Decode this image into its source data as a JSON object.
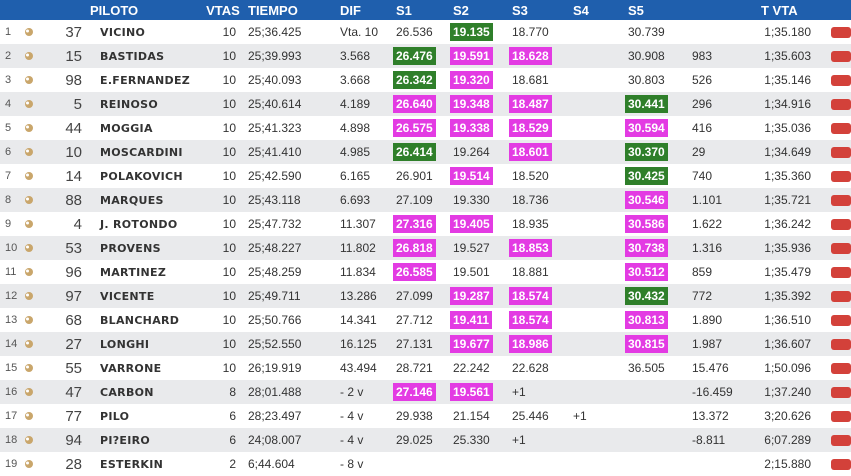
{
  "headers": {
    "piloto": "PILOTO",
    "vtas": "VTAS",
    "tiempo": "TIEMPO",
    "dif": "DIF",
    "s1": "S1",
    "s2": "S2",
    "s3": "S3",
    "s4": "S4",
    "s5": "S5",
    "tvta": "T VTA"
  },
  "colors": {
    "header_bg": "#1f5fad",
    "green": "#2f7f2a",
    "magenta": "#e33be3",
    "flag": "#d3413a",
    "row_alt": "#e9eaec"
  },
  "rows": [
    {
      "pos": "1",
      "num": "37",
      "name": "Vicino",
      "vtas": "10",
      "tiempo": "25;36.425",
      "dif": "Vta. 10",
      "s1": "26.536",
      "s1h": "",
      "s2": "19.135",
      "s2h": "g",
      "s3": "18.770",
      "s3h": "",
      "s4": "",
      "s5": "30.739",
      "s5h": "",
      "gap": "",
      "tvta": "1;35.180"
    },
    {
      "pos": "2",
      "num": "15",
      "name": "Bastidas",
      "vtas": "10",
      "tiempo": "25;39.993",
      "dif": "3.568",
      "s1": "26.476",
      "s1h": "g",
      "s2": "19.591",
      "s2h": "m",
      "s3": "18.628",
      "s3h": "m",
      "s4": "",
      "s5": "30.908",
      "s5h": "",
      "gap": "983",
      "tvta": "1;35.603"
    },
    {
      "pos": "3",
      "num": "98",
      "name": "E.Fernandez",
      "vtas": "10",
      "tiempo": "25;40.093",
      "dif": "3.668",
      "s1": "26.342",
      "s1h": "g",
      "s2": "19.320",
      "s2h": "m",
      "s3": "18.681",
      "s3h": "",
      "s4": "",
      "s5": "30.803",
      "s5h": "",
      "gap": "526",
      "tvta": "1;35.146"
    },
    {
      "pos": "4",
      "num": "5",
      "name": "Reinoso",
      "vtas": "10",
      "tiempo": "25;40.614",
      "dif": "4.189",
      "s1": "26.640",
      "s1h": "m",
      "s2": "19.348",
      "s2h": "m",
      "s3": "18.487",
      "s3h": "m",
      "s4": "",
      "s5": "30.441",
      "s5h": "g",
      "gap": "296",
      "tvta": "1;34.916"
    },
    {
      "pos": "5",
      "num": "44",
      "name": "Moggia",
      "vtas": "10",
      "tiempo": "25;41.323",
      "dif": "4.898",
      "s1": "26.575",
      "s1h": "m",
      "s2": "19.338",
      "s2h": "m",
      "s3": "18.529",
      "s3h": "m",
      "s4": "",
      "s5": "30.594",
      "s5h": "m",
      "gap": "416",
      "tvta": "1;35.036"
    },
    {
      "pos": "6",
      "num": "10",
      "name": "Moscardini",
      "vtas": "10",
      "tiempo": "25;41.410",
      "dif": "4.985",
      "s1": "26.414",
      "s1h": "g",
      "s2": "19.264",
      "s2h": "",
      "s3": "18.601",
      "s3h": "m",
      "s4": "",
      "s5": "30.370",
      "s5h": "g",
      "gap": "29",
      "tvta": "1;34.649"
    },
    {
      "pos": "7",
      "num": "14",
      "name": "Polakovich",
      "vtas": "10",
      "tiempo": "25;42.590",
      "dif": "6.165",
      "s1": "26.901",
      "s1h": "",
      "s2": "19.514",
      "s2h": "m",
      "s3": "18.520",
      "s3h": "",
      "s4": "",
      "s5": "30.425",
      "s5h": "g",
      "gap": "740",
      "tvta": "1;35.360"
    },
    {
      "pos": "8",
      "num": "88",
      "name": "Marques",
      "vtas": "10",
      "tiempo": "25;43.118",
      "dif": "6.693",
      "s1": "27.109",
      "s1h": "",
      "s2": "19.330",
      "s2h": "",
      "s3": "18.736",
      "s3h": "",
      "s4": "",
      "s5": "30.546",
      "s5h": "m",
      "gap": "1.101",
      "tvta": "1;35.721"
    },
    {
      "pos": "9",
      "num": "4",
      "name": "J. Rotondo",
      "vtas": "10",
      "tiempo": "25;47.732",
      "dif": "11.307",
      "s1": "27.316",
      "s1h": "m",
      "s2": "19.405",
      "s2h": "m",
      "s3": "18.935",
      "s3h": "",
      "s4": "",
      "s5": "30.586",
      "s5h": "m",
      "gap": "1.622",
      "tvta": "1;36.242"
    },
    {
      "pos": "10",
      "num": "53",
      "name": "Provens",
      "vtas": "10",
      "tiempo": "25;48.227",
      "dif": "11.802",
      "s1": "26.818",
      "s1h": "m",
      "s2": "19.527",
      "s2h": "",
      "s3": "18.853",
      "s3h": "m",
      "s4": "",
      "s5": "30.738",
      "s5h": "m",
      "gap": "1.316",
      "tvta": "1;35.936"
    },
    {
      "pos": "11",
      "num": "96",
      "name": "Martinez",
      "vtas": "10",
      "tiempo": "25;48.259",
      "dif": "11.834",
      "s1": "26.585",
      "s1h": "m",
      "s2": "19.501",
      "s2h": "",
      "s3": "18.881",
      "s3h": "",
      "s4": "",
      "s5": "30.512",
      "s5h": "m",
      "gap": "859",
      "tvta": "1;35.479"
    },
    {
      "pos": "12",
      "num": "97",
      "name": "Vicente",
      "vtas": "10",
      "tiempo": "25;49.711",
      "dif": "13.286",
      "s1": "27.099",
      "s1h": "",
      "s2": "19.287",
      "s2h": "m",
      "s3": "18.574",
      "s3h": "m",
      "s4": "",
      "s5": "30.432",
      "s5h": "g",
      "gap": "772",
      "tvta": "1;35.392"
    },
    {
      "pos": "13",
      "num": "68",
      "name": "Blanchard",
      "vtas": "10",
      "tiempo": "25;50.766",
      "dif": "14.341",
      "s1": "27.712",
      "s1h": "",
      "s2": "19.411",
      "s2h": "m",
      "s3": "18.574",
      "s3h": "m",
      "s4": "",
      "s5": "30.813",
      "s5h": "m",
      "gap": "1.890",
      "tvta": "1;36.510"
    },
    {
      "pos": "14",
      "num": "27",
      "name": "Longhi",
      "vtas": "10",
      "tiempo": "25;52.550",
      "dif": "16.125",
      "s1": "27.131",
      "s1h": "",
      "s2": "19.677",
      "s2h": "m",
      "s3": "18.986",
      "s3h": "m",
      "s4": "",
      "s5": "30.815",
      "s5h": "m",
      "gap": "1.987",
      "tvta": "1;36.607"
    },
    {
      "pos": "15",
      "num": "55",
      "name": "Varrone",
      "vtas": "10",
      "tiempo": "26;19.919",
      "dif": "43.494",
      "s1": "28.721",
      "s1h": "",
      "s2": "22.242",
      "s2h": "",
      "s3": "22.628",
      "s3h": "",
      "s4": "",
      "s5": "36.505",
      "s5h": "",
      "gap": "15.476",
      "tvta": "1;50.096"
    },
    {
      "pos": "16",
      "num": "47",
      "name": "Carbon",
      "vtas": "8",
      "tiempo": "28;01.488",
      "dif": "- 2 v",
      "s1": "27.146",
      "s1h": "m",
      "s2": "19.561",
      "s2h": "m",
      "s3": "+1",
      "s3h": "",
      "s4": "",
      "s5": "",
      "s5h": "",
      "gap": "-16.459",
      "tvta": "1;37.240"
    },
    {
      "pos": "17",
      "num": "77",
      "name": "Pilo",
      "vtas": "6",
      "tiempo": "28;23.497",
      "dif": "- 4 v",
      "s1": "29.938",
      "s1h": "",
      "s2": "21.154",
      "s2h": "",
      "s3": "25.446",
      "s3h": "",
      "s4": "+1",
      "s5": "",
      "s5h": "",
      "gap": "13.372",
      "tvta": "3;20.626"
    },
    {
      "pos": "18",
      "num": "94",
      "name": "Pi?eiro",
      "vtas": "6",
      "tiempo": "24;08.007",
      "dif": "- 4 v",
      "s1": "29.025",
      "s1h": "",
      "s2": "25.330",
      "s2h": "",
      "s3": "+1",
      "s3h": "",
      "s4": "",
      "s5": "",
      "s5h": "",
      "gap": "-8.811",
      "tvta": "6;07.289"
    },
    {
      "pos": "19",
      "num": "28",
      "name": "Esterkin",
      "vtas": "2",
      "tiempo": "6;44.604",
      "dif": "- 8 v",
      "s1": "",
      "s1h": "",
      "s2": "",
      "s2h": "",
      "s3": "",
      "s3h": "",
      "s4": "",
      "s5": "",
      "s5h": "",
      "gap": "",
      "tvta": "2;15.880"
    }
  ]
}
